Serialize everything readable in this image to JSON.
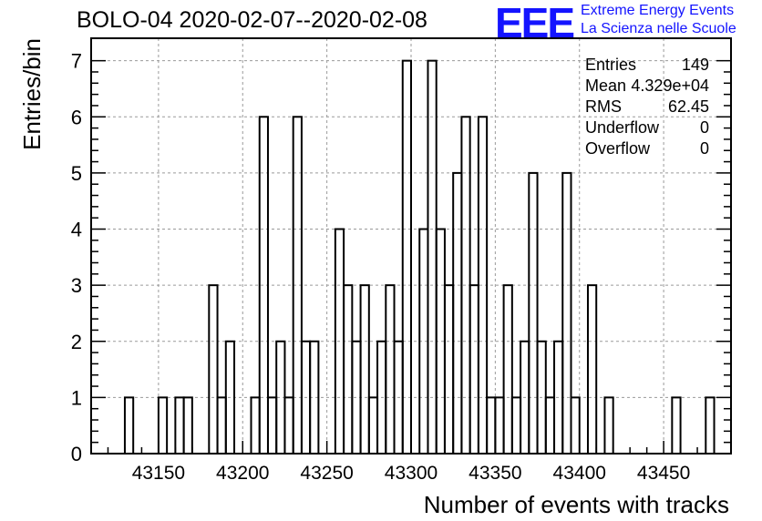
{
  "header": {
    "title": "BOLO-04 2020-02-07--2020-02-08",
    "logo_text": "EEE",
    "logo_line1": "Extreme Energy Events",
    "logo_line2": "La Scienza nelle Scuole",
    "brand_color": "#1414ff"
  },
  "stats": [
    {
      "label": "Entries",
      "value": "149"
    },
    {
      "label": "Mean",
      "value": "4.329e+04"
    },
    {
      "label": "RMS",
      "value": "62.45"
    },
    {
      "label": "Underflow",
      "value": "0"
    },
    {
      "label": "Overflow",
      "value": "0"
    }
  ],
  "chart_data": {
    "type": "histogram",
    "xlabel": "Number of events with tracks",
    "ylabel": "Entries/bin",
    "xlim": [
      43110,
      43490
    ],
    "ylim": [
      0,
      7.4
    ],
    "bin_width": 5,
    "grid": true,
    "x_ticks": [
      43150,
      43200,
      43250,
      43300,
      43350,
      43400,
      43450
    ],
    "y_ticks": [
      0,
      1,
      2,
      3,
      4,
      5,
      6,
      7
    ],
    "bins": [
      {
        "x": 43125,
        "y": 0
      },
      {
        "x": 43130,
        "y": 1
      },
      {
        "x": 43135,
        "y": 0
      },
      {
        "x": 43145,
        "y": 0
      },
      {
        "x": 43150,
        "y": 1
      },
      {
        "x": 43155,
        "y": 0
      },
      {
        "x": 43160,
        "y": 1
      },
      {
        "x": 43165,
        "y": 1
      },
      {
        "x": 43170,
        "y": 0
      },
      {
        "x": 43175,
        "y": 0
      },
      {
        "x": 43180,
        "y": 3
      },
      {
        "x": 43185,
        "y": 1
      },
      {
        "x": 43190,
        "y": 2
      },
      {
        "x": 43195,
        "y": 0
      },
      {
        "x": 43200,
        "y": 0
      },
      {
        "x": 43205,
        "y": 1
      },
      {
        "x": 43210,
        "y": 6
      },
      {
        "x": 43215,
        "y": 1
      },
      {
        "x": 43220,
        "y": 2
      },
      {
        "x": 43225,
        "y": 1
      },
      {
        "x": 43230,
        "y": 6
      },
      {
        "x": 43235,
        "y": 2
      },
      {
        "x": 43240,
        "y": 2
      },
      {
        "x": 43245,
        "y": 0
      },
      {
        "x": 43250,
        "y": 0
      },
      {
        "x": 43255,
        "y": 4
      },
      {
        "x": 43260,
        "y": 3
      },
      {
        "x": 43265,
        "y": 2
      },
      {
        "x": 43270,
        "y": 3
      },
      {
        "x": 43275,
        "y": 1
      },
      {
        "x": 43280,
        "y": 2
      },
      {
        "x": 43285,
        "y": 3
      },
      {
        "x": 43290,
        "y": 2
      },
      {
        "x": 43295,
        "y": 7
      },
      {
        "x": 43300,
        "y": 0
      },
      {
        "x": 43305,
        "y": 4
      },
      {
        "x": 43310,
        "y": 7
      },
      {
        "x": 43315,
        "y": 4
      },
      {
        "x": 43320,
        "y": 3
      },
      {
        "x": 43325,
        "y": 5
      },
      {
        "x": 43330,
        "y": 6
      },
      {
        "x": 43335,
        "y": 3
      },
      {
        "x": 43340,
        "y": 6
      },
      {
        "x": 43345,
        "y": 1
      },
      {
        "x": 43350,
        "y": 1
      },
      {
        "x": 43355,
        "y": 3
      },
      {
        "x": 43360,
        "y": 1
      },
      {
        "x": 43365,
        "y": 2
      },
      {
        "x": 43370,
        "y": 5
      },
      {
        "x": 43375,
        "y": 2
      },
      {
        "x": 43380,
        "y": 1
      },
      {
        "x": 43385,
        "y": 2
      },
      {
        "x": 43390,
        "y": 5
      },
      {
        "x": 43395,
        "y": 1
      },
      {
        "x": 43400,
        "y": 0
      },
      {
        "x": 43405,
        "y": 3
      },
      {
        "x": 43410,
        "y": 0
      },
      {
        "x": 43415,
        "y": 1
      },
      {
        "x": 43420,
        "y": 0
      },
      {
        "x": 43455,
        "y": 1
      },
      {
        "x": 43460,
        "y": 0
      },
      {
        "x": 43475,
        "y": 1
      },
      {
        "x": 43480,
        "y": 0
      }
    ]
  }
}
